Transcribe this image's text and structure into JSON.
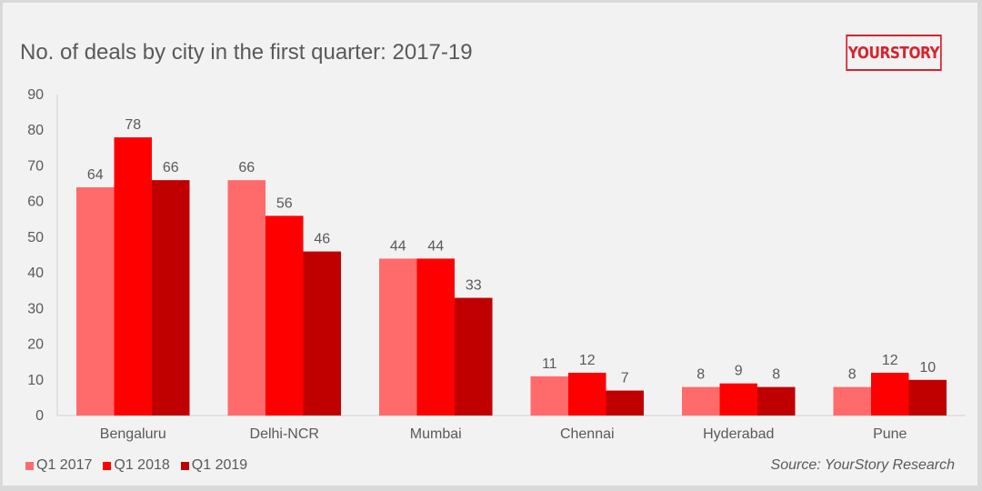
{
  "header": {
    "title": "No. of deals by city in the first quarter: 2017-19",
    "logo_text": "YOURSTORY"
  },
  "footer": {
    "source": "Source: YourStory Research"
  },
  "colors": {
    "q1_2017": "#ff6b6b",
    "q1_2018": "#ff0000",
    "q1_2019": "#c00000",
    "brand": "#d9232d",
    "text": "#595959",
    "axis": "#d0d0d0"
  },
  "chart_data": {
    "type": "bar",
    "title": "No. of deals by city in the first quarter: 2017-19",
    "xlabel": "",
    "ylabel": "",
    "ylim": [
      0,
      90
    ],
    "yticks": [
      0,
      10,
      20,
      30,
      40,
      50,
      60,
      70,
      80,
      90
    ],
    "grid": false,
    "legend_position": "bottom-left",
    "categories": [
      "Bengaluru",
      "Delhi-NCR",
      "Mumbai",
      "Chennai",
      "Hyderabad",
      "Pune"
    ],
    "series": [
      {
        "name": "Q1 2017",
        "values": [
          64,
          66,
          44,
          11,
          8,
          8
        ]
      },
      {
        "name": "Q1 2018",
        "values": [
          78,
          56,
          44,
          12,
          9,
          12
        ]
      },
      {
        "name": "Q1 2019",
        "values": [
          66,
          46,
          33,
          7,
          8,
          10
        ]
      }
    ]
  }
}
